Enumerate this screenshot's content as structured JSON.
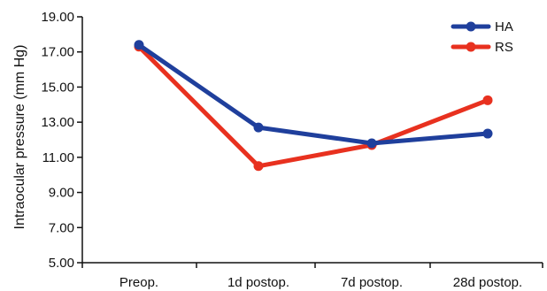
{
  "chart_data": {
    "type": "line",
    "title": "",
    "xlabel": "",
    "ylabel": "Intraocular pressure (mm Hg)",
    "categories": [
      "Preop.",
      "1d postop.",
      "7d postop.",
      "28d postop."
    ],
    "yticks": [
      "5.00",
      "7.00",
      "9.00",
      "11.00",
      "13.00",
      "15.00",
      "17.00",
      "19.00"
    ],
    "ylim": [
      5,
      19
    ],
    "grid": false,
    "legend": "top-right",
    "series": [
      {
        "name": "HA",
        "color": "#1f3f9c",
        "values": [
          17.4,
          12.7,
          11.8,
          12.35
        ]
      },
      {
        "name": "RS",
        "color": "#e8311f",
        "values": [
          17.3,
          10.5,
          11.7,
          14.25
        ]
      }
    ]
  }
}
